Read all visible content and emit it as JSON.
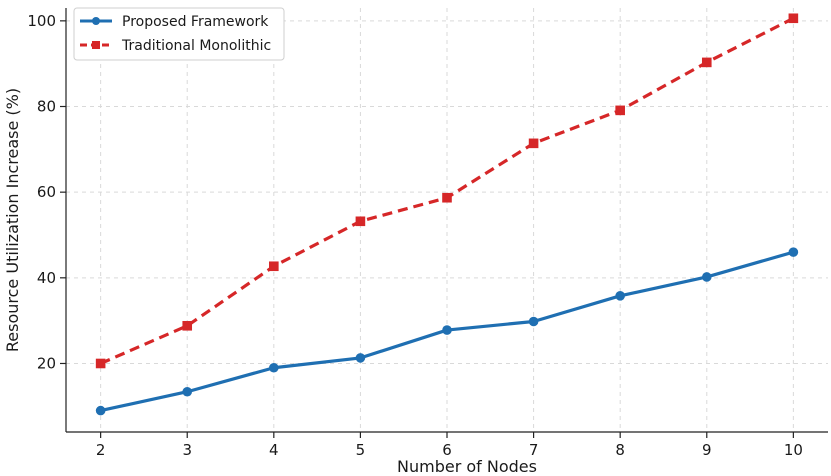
{
  "chart_data": {
    "type": "line",
    "title": "",
    "xlabel": "Number of Nodes",
    "ylabel": "Resource Utilization Increase (%)",
    "x": [
      2,
      3,
      4,
      5,
      6,
      7,
      8,
      9,
      10
    ],
    "xlim": [
      1.6,
      10.4
    ],
    "ylim": [
      4,
      103
    ],
    "yticks": [
      20,
      40,
      60,
      80,
      100
    ],
    "grid": true,
    "legend_position": "top-left",
    "series": [
      {
        "name": "Proposed Framework",
        "color": "#1f6fb2",
        "marker": "circle",
        "linestyle": "solid",
        "values": [
          9,
          13.4,
          19,
          21.3,
          27.8,
          29.8,
          35.8,
          40.2,
          46
        ]
      },
      {
        "name": "Traditional Monolithic",
        "color": "#d62728",
        "marker": "square",
        "linestyle": "dashed",
        "values": [
          20,
          28.8,
          42.7,
          53.2,
          58.7,
          71.4,
          79.1,
          90.3,
          100.6
        ]
      }
    ]
  }
}
